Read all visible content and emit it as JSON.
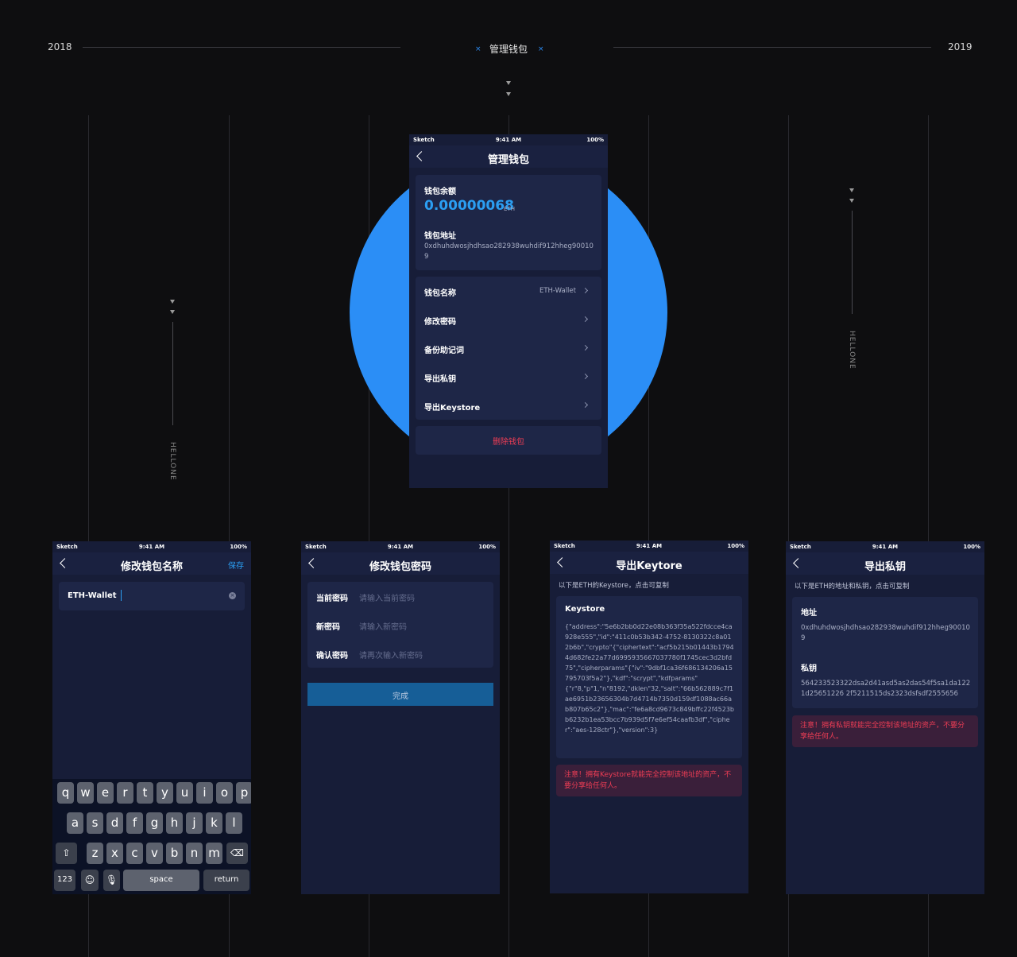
{
  "header": {
    "year_left": "2018",
    "year_right": "2019",
    "center_title": "管理钱包",
    "x_mark": "×"
  },
  "side_label": "HELLONE",
  "status": {
    "carrier": "Sketch",
    "time": "9:41 AM",
    "battery": "100%"
  },
  "manage": {
    "title": "管理钱包",
    "balance_label": "钱包余额",
    "balance_value": "0.00000068",
    "balance_unit": "ETH",
    "address_label": "钱包地址",
    "address_value": "0xdhuhdwosjhdhsao282938wuhdif912hheg900109",
    "menu": [
      {
        "label": "钱包名称",
        "value": "ETH-Wallet"
      },
      {
        "label": "修改密码",
        "value": ""
      },
      {
        "label": "备份助记词",
        "value": ""
      },
      {
        "label": "导出私钥",
        "value": ""
      },
      {
        "label": "导出Keystore",
        "value": ""
      }
    ],
    "delete_label": "删除钱包"
  },
  "rename": {
    "title": "修改钱包名称",
    "save": "保存",
    "input_value": "ETH-Wallet",
    "keys_row1": [
      "q",
      "w",
      "e",
      "r",
      "t",
      "y",
      "u",
      "i",
      "o",
      "p"
    ],
    "keys_row2": [
      "a",
      "s",
      "d",
      "f",
      "g",
      "h",
      "j",
      "k",
      "l"
    ],
    "keys_row3": [
      "z",
      "x",
      "c",
      "v",
      "b",
      "n",
      "m"
    ],
    "key_123": "123",
    "key_space": "space",
    "key_return": "return"
  },
  "password": {
    "title": "修改钱包密码",
    "rows": [
      {
        "label": "当前密码",
        "placeholder": "请输入当前密码"
      },
      {
        "label": "新密码",
        "placeholder": "请输入新密码"
      },
      {
        "label": "确认密码",
        "placeholder": "请再次输入新密码"
      }
    ],
    "done": "完成"
  },
  "keystore": {
    "title": "导出Keytore",
    "hint": "以下是ETH的Keystore，点击可复制",
    "label": "Keystore",
    "content": "{\"address\":\"5e6b2bb0d22e08b363f35a522fdcce4ca928e555\",\"id\":\"411c0b53b342-4752-8130322c8a012b6b\",\"crypto\"{\"ciphertext\":\"acf5b215b01443b17944d682fe22a77d6995935667037780f1745cec3d2bfd75\",\"cipherparams\"{\"iv\":\"9dbf1ca36f686134206a15795703f5a2\"},\"kdf\":\"scrypt\",\"kdfparams\"{\"r\"8,\"p\"1,\"n\"8192,\"dklen\"32,\"salt\":\"66b562889c7f1ae6951b23656304b7d4714b7350d159df1088ac66ab807b65c2\"},\"mac\":\"fe6a8cd9673c849bffc22f4523bb6232b1ea53bcc7b939d5f7e6ef54caafb3df\",\"cipher\":\"aes-128ctr\"},\"version\":3}",
    "warning": "注意！拥有Keystore就能完全控制该地址的资产，不要分享给任何人。"
  },
  "privatekey": {
    "title": "导出私钥",
    "hint": "以下是ETH的地址和私钥，点击可复制",
    "address_label": "地址",
    "address_value": "0xdhuhdwosjhdhsao282938wuhdif912hheg900109",
    "key_label": "私钥",
    "key_value": "564233523322dsa2d41asd5as2das54f5sa1da1221d25651226 2f5211515ds2323dsfsdf2555656",
    "warning": "注意！拥有私钥就能完全控制该地址的资产，不要分享给任何人。"
  },
  "colors": {
    "accent": "#2b8ef6",
    "background": "#0e0e10",
    "screen": "#171d38",
    "danger": "#ef3d55"
  }
}
